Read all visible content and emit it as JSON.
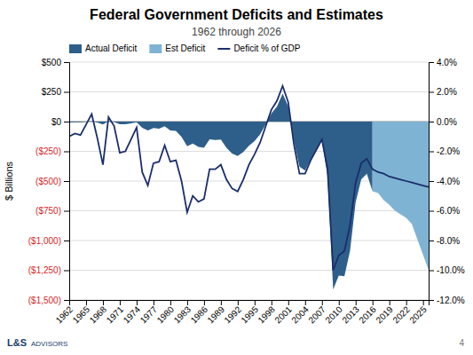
{
  "chart_data": {
    "type": "area",
    "title": "Federal Government Deficits and Estimates",
    "subtitle": "1962 through 2026",
    "ylabel": "$ Billions",
    "annotations": [
      "L&S",
      "ADVISORS",
      "4"
    ],
    "xlim": [
      1962,
      2026
    ],
    "xticks": [
      1962,
      1965,
      1968,
      1971,
      1974,
      1977,
      1980,
      1983,
      1986,
      1989,
      1992,
      1995,
      1998,
      2001,
      2004,
      2007,
      2010,
      2013,
      2016,
      2019,
      2022,
      2025
    ],
    "ylim": [
      -1500,
      500
    ],
    "yticks": [
      {
        "value": 500,
        "label": "$500"
      },
      {
        "value": 250,
        "label": "$250"
      },
      {
        "value": 0,
        "label": "$0"
      },
      {
        "value": -250,
        "label": "($250)"
      },
      {
        "value": -500,
        "label": "($500)"
      },
      {
        "value": -750,
        "label": "($750)"
      },
      {
        "value": -1000,
        "label": "($1,000)"
      },
      {
        "value": -1250,
        "label": "($1,250)"
      },
      {
        "value": -1500,
        "label": "($1,500)"
      }
    ],
    "y2lim": [
      -12.0,
      4.0
    ],
    "y2ticks": [
      {
        "value": 4.0,
        "label": "4.0%"
      },
      {
        "value": 2.0,
        "label": "2.0%"
      },
      {
        "value": 0.0,
        "label": "0.0%"
      },
      {
        "value": -2.0,
        "label": "-2.0%"
      },
      {
        "value": -4.0,
        "label": "-4.0%"
      },
      {
        "value": -6.0,
        "label": "-6.0%"
      },
      {
        "value": -8.0,
        "label": "-8.0%"
      },
      {
        "value": -10.0,
        "label": "-10.0%"
      },
      {
        "value": -12.0,
        "label": "-12.0%"
      }
    ],
    "grid": true,
    "legend": "upper left",
    "series": [
      {
        "name": "Actual Deficit",
        "type": "area",
        "color": "#2e5f8a",
        "x": [
          1962,
          1963,
          1964,
          1965,
          1966,
          1967,
          1968,
          1969,
          1970,
          1971,
          1972,
          1973,
          1974,
          1975,
          1976,
          1977,
          1978,
          1979,
          1980,
          1981,
          1982,
          1983,
          1984,
          1985,
          1986,
          1987,
          1988,
          1989,
          1990,
          1991,
          1992,
          1993,
          1994,
          1995,
          1996,
          1997,
          1998,
          1999,
          2000,
          2001,
          2002,
          2003,
          2004,
          2005,
          2006,
          2007,
          2008,
          2009,
          2010,
          2011,
          2012,
          2013,
          2014,
          2015,
          2016
        ],
        "values": [
          -7,
          -5,
          -6,
          -1,
          3,
          -8,
          -25,
          3,
          -3,
          -23,
          -23,
          -14,
          -6,
          -53,
          -74,
          -54,
          -59,
          -40,
          -74,
          -79,
          -128,
          -208,
          -185,
          -212,
          -221,
          -150,
          -155,
          -152,
          -221,
          -269,
          -290,
          -255,
          -203,
          -164,
          -107,
          -22,
          69,
          126,
          236,
          128,
          -158,
          -378,
          -413,
          -318,
          -248,
          -161,
          -459,
          -1413,
          -1294,
          -1300,
          -1087,
          -680,
          -485,
          -439,
          -585
        ]
      },
      {
        "name": "Est Deficit",
        "type": "area",
        "color": "#7fb3d3",
        "x": [
          2016,
          2017,
          2018,
          2019,
          2020,
          2021,
          2022,
          2023,
          2024,
          2025,
          2026
        ],
        "values": [
          -585,
          -600,
          -660,
          -700,
          -750,
          -780,
          -810,
          -860,
          -990,
          -1120,
          -1250
        ]
      },
      {
        "name": "Deficit % of GDP",
        "type": "line",
        "axis": "y2",
        "color": "#1a2e6b",
        "x": [
          1962,
          1963,
          1964,
          1965,
          1966,
          1967,
          1968,
          1969,
          1970,
          1971,
          1972,
          1973,
          1974,
          1975,
          1976,
          1977,
          1978,
          1979,
          1980,
          1981,
          1982,
          1983,
          1984,
          1985,
          1986,
          1987,
          1988,
          1989,
          1990,
          1991,
          1992,
          1993,
          1994,
          1995,
          1996,
          1997,
          1998,
          1999,
          2000,
          2001,
          2002,
          2003,
          2004,
          2005,
          2006,
          2007,
          2008,
          2009,
          2010,
          2011,
          2012,
          2013,
          2014,
          2015,
          2016,
          2017,
          2018,
          2019,
          2020,
          2021,
          2022,
          2023,
          2024,
          2025,
          2026
        ],
        "values": [
          -1.0,
          -0.8,
          -0.9,
          -0.2,
          0.5,
          -1.1,
          -2.9,
          0.3,
          -0.3,
          -2.1,
          -2.0,
          -1.2,
          -0.4,
          -3.4,
          -4.3,
          -2.8,
          -2.7,
          -1.6,
          -2.7,
          -2.6,
          -4.0,
          -6.1,
          -5.0,
          -5.4,
          -5.2,
          -3.2,
          -3.2,
          -2.9,
          -3.9,
          -4.5,
          -4.7,
          -3.9,
          -2.9,
          -2.2,
          -1.4,
          -0.3,
          0.8,
          1.4,
          2.4,
          1.3,
          -1.5,
          -3.5,
          -3.5,
          -2.6,
          -1.9,
          -1.2,
          -3.2,
          -10.0,
          -9.0,
          -8.7,
          -7.0,
          -4.1,
          -2.8,
          -2.5,
          -3.2,
          -3.4,
          -3.5,
          -3.7,
          -3.8,
          -3.9,
          -4.0,
          -4.1,
          -4.2,
          -4.3,
          -4.4
        ]
      }
    ]
  }
}
